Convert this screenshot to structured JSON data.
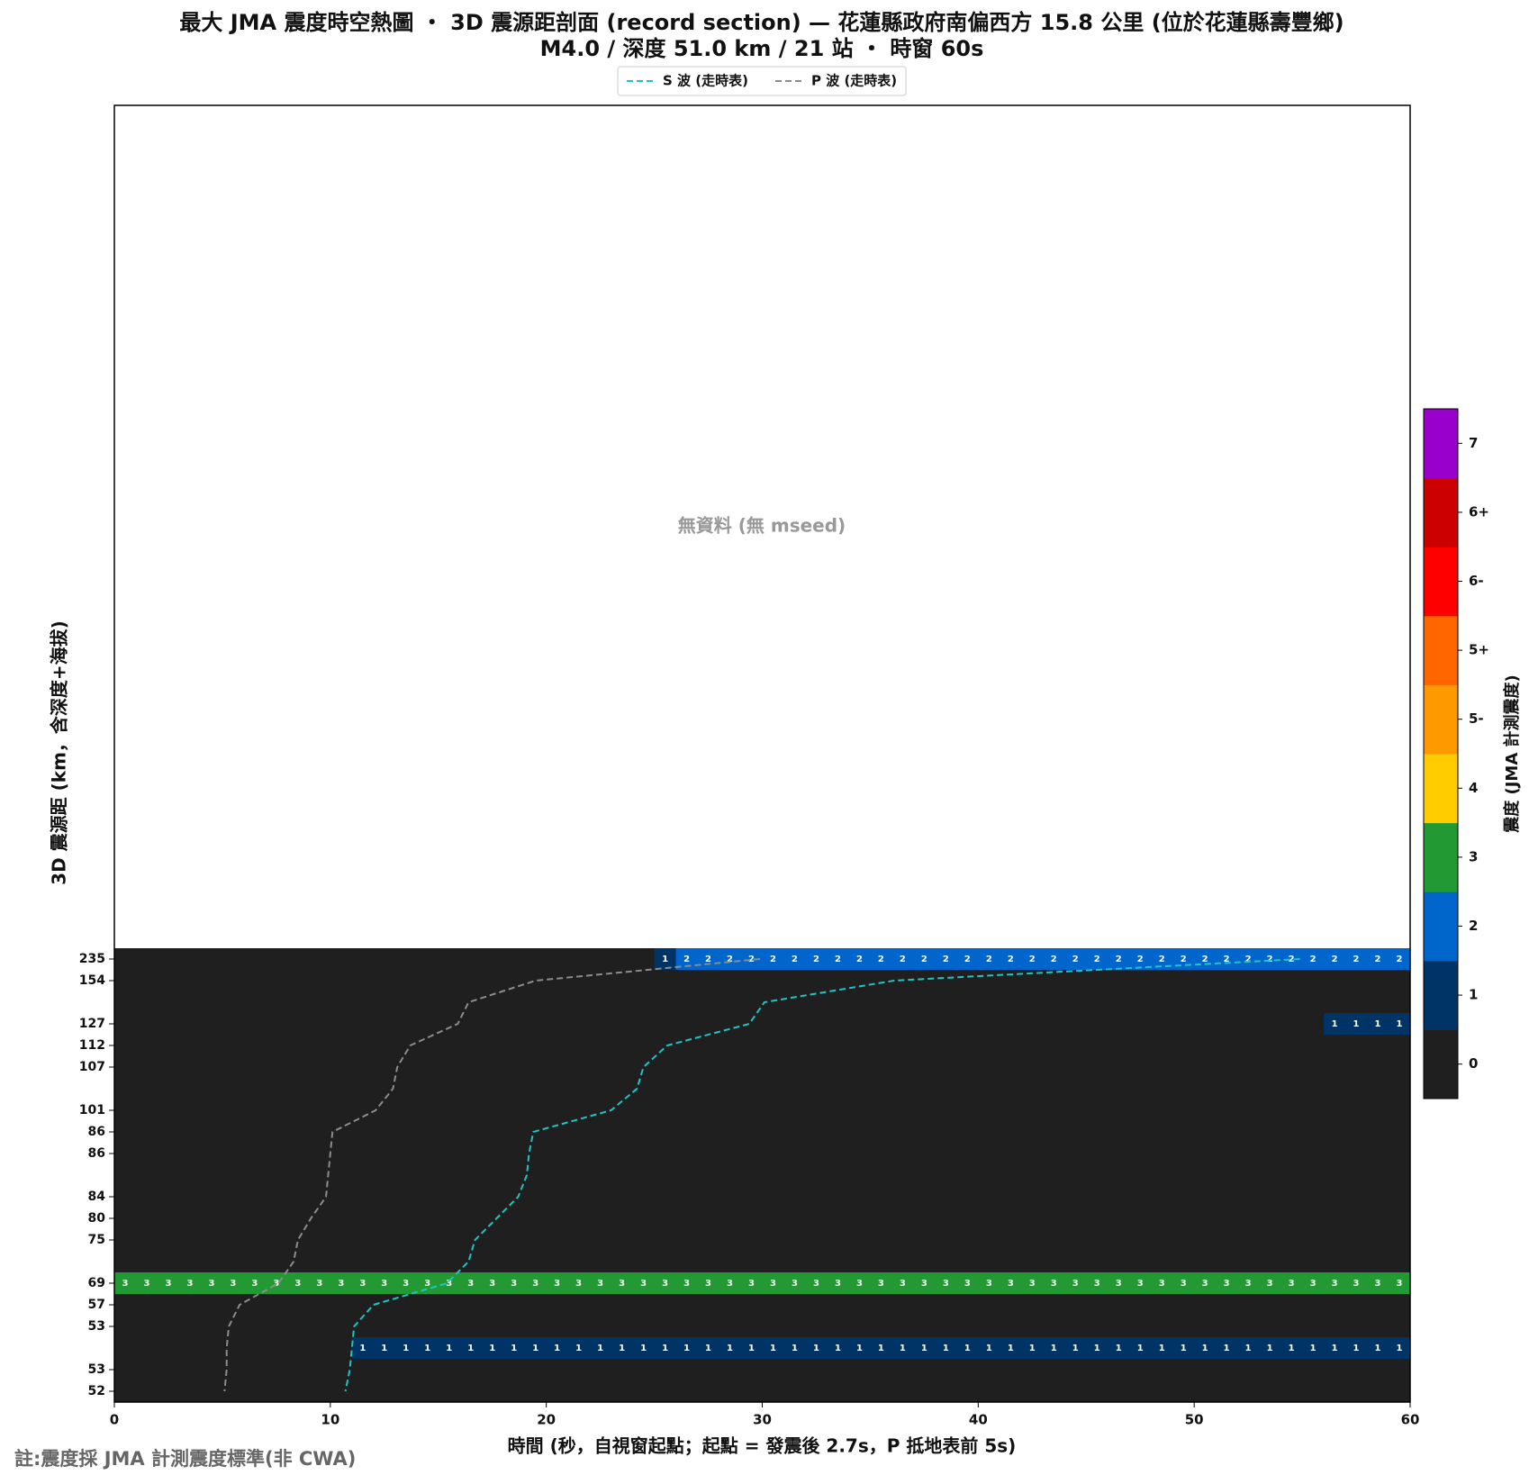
{
  "chart_data": {
    "type": "heatmap",
    "title": "最大 JMA 震度時空熱圖 ・ 3D 震源距剖面 (record section) — 花蓮縣政府南偏西方  15.8  公里 (位於花蓮縣壽豐鄉)",
    "subtitle": "M4.0 / 深度 51.0 km / 21 站 ・ 時窗 60s",
    "annotation": "無資料 (無 mseed)",
    "x_label": "時間 (秒，自視窗起點；起點 = 發震後 2.7s，P 抵地表前 5s)",
    "y_label": "3D 震源距 (km，含深度+海拔)",
    "footnote": "註:震度採 JMA 計測震度標準(非 CWA)",
    "xlim": [
      0,
      60
    ],
    "xticks": [
      0,
      10,
      20,
      30,
      40,
      50,
      60
    ],
    "categories": [
      235,
      154,
      null,
      127,
      112,
      107,
      null,
      101,
      86,
      86,
      null,
      84,
      80,
      75,
      null,
      69,
      57,
      53,
      null,
      53,
      52
    ],
    "z": [
      [
        0,
        0,
        0,
        0,
        0,
        0,
        0,
        0,
        0,
        0,
        0,
        0,
        0,
        0,
        0,
        0,
        0,
        0,
        0,
        0,
        0,
        0,
        0,
        0,
        0,
        1,
        2,
        2,
        2,
        2,
        2,
        2,
        2,
        2,
        2,
        2,
        2,
        2,
        2,
        2,
        2,
        2,
        2,
        2,
        2,
        2,
        2,
        2,
        2,
        2,
        2,
        2,
        2,
        2,
        2,
        2,
        2,
        2,
        2,
        2
      ],
      [
        0,
        0,
        0,
        0,
        0,
        0,
        0,
        0,
        0,
        0,
        0,
        0,
        0,
        0,
        0,
        0,
        0,
        0,
        0,
        0,
        0,
        0,
        0,
        0,
        0,
        0,
        0,
        0,
        0,
        0,
        0,
        0,
        0,
        0,
        0,
        0,
        0,
        0,
        0,
        0,
        0,
        0,
        0,
        0,
        0,
        0,
        0,
        0,
        0,
        0,
        0,
        0,
        0,
        0,
        0,
        0,
        0,
        0,
        0,
        0
      ],
      [
        0,
        0,
        0,
        0,
        0,
        0,
        0,
        0,
        0,
        0,
        0,
        0,
        0,
        0,
        0,
        0,
        0,
        0,
        0,
        0,
        0,
        0,
        0,
        0,
        0,
        0,
        0,
        0,
        0,
        0,
        0,
        0,
        0,
        0,
        0,
        0,
        0,
        0,
        0,
        0,
        0,
        0,
        0,
        0,
        0,
        0,
        0,
        0,
        0,
        0,
        0,
        0,
        0,
        0,
        0,
        0,
        0,
        0,
        0,
        0
      ],
      [
        0,
        0,
        0,
        0,
        0,
        0,
        0,
        0,
        0,
        0,
        0,
        0,
        0,
        0,
        0,
        0,
        0,
        0,
        0,
        0,
        0,
        0,
        0,
        0,
        0,
        0,
        0,
        0,
        0,
        0,
        0,
        0,
        0,
        0,
        0,
        0,
        0,
        0,
        0,
        0,
        0,
        0,
        0,
        0,
        0,
        0,
        0,
        0,
        0,
        0,
        0,
        0,
        0,
        0,
        0,
        0,
        1,
        1,
        1,
        1
      ],
      [
        0,
        0,
        0,
        0,
        0,
        0,
        0,
        0,
        0,
        0,
        0,
        0,
        0,
        0,
        0,
        0,
        0,
        0,
        0,
        0,
        0,
        0,
        0,
        0,
        0,
        0,
        0,
        0,
        0,
        0,
        0,
        0,
        0,
        0,
        0,
        0,
        0,
        0,
        0,
        0,
        0,
        0,
        0,
        0,
        0,
        0,
        0,
        0,
        0,
        0,
        0,
        0,
        0,
        0,
        0,
        0,
        0,
        0,
        0,
        0
      ],
      [
        0,
        0,
        0,
        0,
        0,
        0,
        0,
        0,
        0,
        0,
        0,
        0,
        0,
        0,
        0,
        0,
        0,
        0,
        0,
        0,
        0,
        0,
        0,
        0,
        0,
        0,
        0,
        0,
        0,
        0,
        0,
        0,
        0,
        0,
        0,
        0,
        0,
        0,
        0,
        0,
        0,
        0,
        0,
        0,
        0,
        0,
        0,
        0,
        0,
        0,
        0,
        0,
        0,
        0,
        0,
        0,
        0,
        0,
        0,
        0
      ],
      [
        0,
        0,
        0,
        0,
        0,
        0,
        0,
        0,
        0,
        0,
        0,
        0,
        0,
        0,
        0,
        0,
        0,
        0,
        0,
        0,
        0,
        0,
        0,
        0,
        0,
        0,
        0,
        0,
        0,
        0,
        0,
        0,
        0,
        0,
        0,
        0,
        0,
        0,
        0,
        0,
        0,
        0,
        0,
        0,
        0,
        0,
        0,
        0,
        0,
        0,
        0,
        0,
        0,
        0,
        0,
        0,
        0,
        0,
        0,
        0
      ],
      [
        0,
        0,
        0,
        0,
        0,
        0,
        0,
        0,
        0,
        0,
        0,
        0,
        0,
        0,
        0,
        0,
        0,
        0,
        0,
        0,
        0,
        0,
        0,
        0,
        0,
        0,
        0,
        0,
        0,
        0,
        0,
        0,
        0,
        0,
        0,
        0,
        0,
        0,
        0,
        0,
        0,
        0,
        0,
        0,
        0,
        0,
        0,
        0,
        0,
        0,
        0,
        0,
        0,
        0,
        0,
        0,
        0,
        0,
        0,
        0
      ],
      [
        0,
        0,
        0,
        0,
        0,
        0,
        0,
        0,
        0,
        0,
        0,
        0,
        0,
        0,
        0,
        0,
        0,
        0,
        0,
        0,
        0,
        0,
        0,
        0,
        0,
        0,
        0,
        0,
        0,
        0,
        0,
        0,
        0,
        0,
        0,
        0,
        0,
        0,
        0,
        0,
        0,
        0,
        0,
        0,
        0,
        0,
        0,
        0,
        0,
        0,
        0,
        0,
        0,
        0,
        0,
        0,
        0,
        0,
        0,
        0
      ],
      [
        0,
        0,
        0,
        0,
        0,
        0,
        0,
        0,
        0,
        0,
        0,
        0,
        0,
        0,
        0,
        0,
        0,
        0,
        0,
        0,
        0,
        0,
        0,
        0,
        0,
        0,
        0,
        0,
        0,
        0,
        0,
        0,
        0,
        0,
        0,
        0,
        0,
        0,
        0,
        0,
        0,
        0,
        0,
        0,
        0,
        0,
        0,
        0,
        0,
        0,
        0,
        0,
        0,
        0,
        0,
        0,
        0,
        0,
        0,
        0
      ],
      [
        0,
        0,
        0,
        0,
        0,
        0,
        0,
        0,
        0,
        0,
        0,
        0,
        0,
        0,
        0,
        0,
        0,
        0,
        0,
        0,
        0,
        0,
        0,
        0,
        0,
        0,
        0,
        0,
        0,
        0,
        0,
        0,
        0,
        0,
        0,
        0,
        0,
        0,
        0,
        0,
        0,
        0,
        0,
        0,
        0,
        0,
        0,
        0,
        0,
        0,
        0,
        0,
        0,
        0,
        0,
        0,
        0,
        0,
        0,
        0
      ],
      [
        0,
        0,
        0,
        0,
        0,
        0,
        0,
        0,
        0,
        0,
        0,
        0,
        0,
        0,
        0,
        0,
        0,
        0,
        0,
        0,
        0,
        0,
        0,
        0,
        0,
        0,
        0,
        0,
        0,
        0,
        0,
        0,
        0,
        0,
        0,
        0,
        0,
        0,
        0,
        0,
        0,
        0,
        0,
        0,
        0,
        0,
        0,
        0,
        0,
        0,
        0,
        0,
        0,
        0,
        0,
        0,
        0,
        0,
        0,
        0
      ],
      [
        0,
        0,
        0,
        0,
        0,
        0,
        0,
        0,
        0,
        0,
        0,
        0,
        0,
        0,
        0,
        0,
        0,
        0,
        0,
        0,
        0,
        0,
        0,
        0,
        0,
        0,
        0,
        0,
        0,
        0,
        0,
        0,
        0,
        0,
        0,
        0,
        0,
        0,
        0,
        0,
        0,
        0,
        0,
        0,
        0,
        0,
        0,
        0,
        0,
        0,
        0,
        0,
        0,
        0,
        0,
        0,
        0,
        0,
        0,
        0
      ],
      [
        0,
        0,
        0,
        0,
        0,
        0,
        0,
        0,
        0,
        0,
        0,
        0,
        0,
        0,
        0,
        0,
        0,
        0,
        0,
        0,
        0,
        0,
        0,
        0,
        0,
        0,
        0,
        0,
        0,
        0,
        0,
        0,
        0,
        0,
        0,
        0,
        0,
        0,
        0,
        0,
        0,
        0,
        0,
        0,
        0,
        0,
        0,
        0,
        0,
        0,
        0,
        0,
        0,
        0,
        0,
        0,
        0,
        0,
        0,
        0
      ],
      [
        0,
        0,
        0,
        0,
        0,
        0,
        0,
        0,
        0,
        0,
        0,
        0,
        0,
        0,
        0,
        0,
        0,
        0,
        0,
        0,
        0,
        0,
        0,
        0,
        0,
        0,
        0,
        0,
        0,
        0,
        0,
        0,
        0,
        0,
        0,
        0,
        0,
        0,
        0,
        0,
        0,
        0,
        0,
        0,
        0,
        0,
        0,
        0,
        0,
        0,
        0,
        0,
        0,
        0,
        0,
        0,
        0,
        0,
        0,
        0
      ],
      [
        3,
        3,
        3,
        3,
        3,
        3,
        3,
        3,
        3,
        3,
        3,
        3,
        3,
        3,
        3,
        3,
        3,
        3,
        3,
        3,
        3,
        3,
        3,
        3,
        3,
        3,
        3,
        3,
        3,
        3,
        3,
        3,
        3,
        3,
        3,
        3,
        3,
        3,
        3,
        3,
        3,
        3,
        3,
        3,
        3,
        3,
        3,
        3,
        3,
        3,
        3,
        3,
        3,
        3,
        3,
        3,
        3,
        3,
        3,
        3
      ],
      [
        0,
        0,
        0,
        0,
        0,
        0,
        0,
        0,
        0,
        0,
        0,
        0,
        0,
        0,
        0,
        0,
        0,
        0,
        0,
        0,
        0,
        0,
        0,
        0,
        0,
        0,
        0,
        0,
        0,
        0,
        0,
        0,
        0,
        0,
        0,
        0,
        0,
        0,
        0,
        0,
        0,
        0,
        0,
        0,
        0,
        0,
        0,
        0,
        0,
        0,
        0,
        0,
        0,
        0,
        0,
        0,
        0,
        0,
        0,
        0
      ],
      [
        0,
        0,
        0,
        0,
        0,
        0,
        0,
        0,
        0,
        0,
        0,
        0,
        0,
        0,
        0,
        0,
        0,
        0,
        0,
        0,
        0,
        0,
        0,
        0,
        0,
        0,
        0,
        0,
        0,
        0,
        0,
        0,
        0,
        0,
        0,
        0,
        0,
        0,
        0,
        0,
        0,
        0,
        0,
        0,
        0,
        0,
        0,
        0,
        0,
        0,
        0,
        0,
        0,
        0,
        0,
        0,
        0,
        0,
        0,
        0
      ],
      [
        0,
        0,
        0,
        0,
        0,
        0,
        0,
        0,
        0,
        0,
        0,
        1,
        1,
        1,
        1,
        1,
        1,
        1,
        1,
        1,
        1,
        1,
        1,
        1,
        1,
        1,
        1,
        1,
        1,
        1,
        1,
        1,
        1,
        1,
        1,
        1,
        1,
        1,
        1,
        1,
        1,
        1,
        1,
        1,
        1,
        1,
        1,
        1,
        1,
        1,
        1,
        1,
        1,
        1,
        1,
        1,
        1,
        1,
        1,
        1
      ],
      [
        0,
        0,
        0,
        0,
        0,
        0,
        0,
        0,
        0,
        0,
        0,
        0,
        0,
        0,
        0,
        0,
        0,
        0,
        0,
        0,
        0,
        0,
        0,
        0,
        0,
        0,
        0,
        0,
        0,
        0,
        0,
        0,
        0,
        0,
        0,
        0,
        0,
        0,
        0,
        0,
        0,
        0,
        0,
        0,
        0,
        0,
        0,
        0,
        0,
        0,
        0,
        0,
        0,
        0,
        0,
        0,
        0,
        0,
        0,
        0
      ],
      [
        0,
        0,
        0,
        0,
        0,
        0,
        0,
        0,
        0,
        0,
        0,
        0,
        0,
        0,
        0,
        0,
        0,
        0,
        0,
        0,
        0,
        0,
        0,
        0,
        0,
        0,
        0,
        0,
        0,
        0,
        0,
        0,
        0,
        0,
        0,
        0,
        0,
        0,
        0,
        0,
        0,
        0,
        0,
        0,
        0,
        0,
        0,
        0,
        0,
        0,
        0,
        0,
        0,
        0,
        0,
        0,
        0,
        0,
        0,
        0
      ]
    ],
    "series": [
      {
        "name": "S 波 (走時表)",
        "color": "#1fc4c4",
        "values": [
          54.9,
          36.1,
          30.1,
          29.4,
          25.6,
          24.5,
          24.2,
          23.0,
          19.4,
          19.2,
          19.1,
          18.7,
          17.7,
          16.7,
          16.4,
          15.4,
          12.0,
          11.1,
          11.0,
          10.9,
          10.7
        ]
      },
      {
        "name": "P 波 (走時表)",
        "color": "#8c8c8c",
        "values": [
          29.9,
          19.5,
          16.4,
          15.9,
          13.7,
          13.1,
          12.9,
          12.1,
          10.1,
          10.0,
          9.9,
          9.8,
          9.1,
          8.5,
          8.3,
          7.6,
          5.8,
          5.3,
          5.2,
          5.2,
          5.1
        ]
      }
    ],
    "colorbar": {
      "label": "震度 (JMA 計測震度)",
      "levels": [
        "0",
        "1",
        "2",
        "3",
        "4",
        "5-",
        "5+",
        "6-",
        "6+",
        "7"
      ],
      "colors": [
        "#1f1f1f",
        "#003366",
        "#0066cc",
        "#229933",
        "#ffcc00",
        "#ff9900",
        "#ff6600",
        "#ff0000",
        "#cc0000",
        "#9900cc"
      ]
    }
  }
}
